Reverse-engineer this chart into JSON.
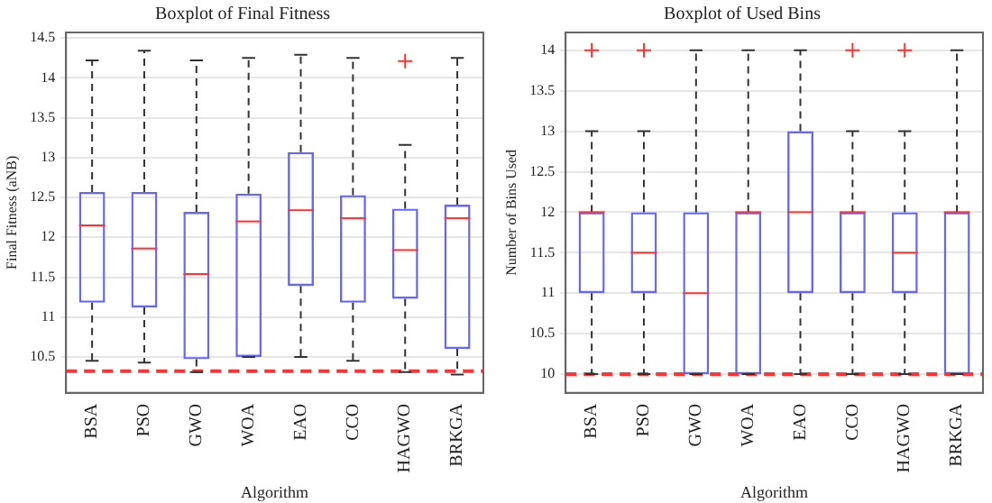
{
  "chart_data": [
    {
      "type": "box",
      "title": "Boxplot of Final Fitness",
      "xlabel": "Algorithm",
      "ylabel": "Final Fitness (aNB)",
      "categories": [
        "BSA",
        "PSO",
        "GWO",
        "WOA",
        "EAO",
        "CCO",
        "HAGWO",
        "BRKGA"
      ],
      "ylim": [
        10.05,
        14.57
      ],
      "yticks": [
        10.5,
        11,
        11.5,
        12,
        12.5,
        13,
        13.5,
        14,
        14.5
      ],
      "grid": "y",
      "series": [
        {
          "color": "#6666ff",
          "boxes": [
            {
              "low": 10.45,
              "q1": 11.18,
              "median": 12.15,
              "q3": 12.57,
              "high": 14.22
            },
            {
              "low": 10.43,
              "q1": 11.12,
              "median": 11.86,
              "q3": 12.57,
              "high": 14.34
            },
            {
              "low": 10.31,
              "q1": 10.47,
              "median": 11.54,
              "q3": 12.32,
              "high": 14.22
            },
            {
              "low": 10.5,
              "q1": 10.5,
              "median": 12.2,
              "q3": 12.55,
              "high": 14.25
            },
            {
              "low": 10.5,
              "q1": 11.39,
              "median": 12.34,
              "q3": 13.07,
              "high": 14.29
            },
            {
              "low": 10.45,
              "q1": 11.18,
              "median": 12.24,
              "q3": 12.53,
              "high": 14.25
            },
            {
              "low": 10.31,
              "q1": 11.23,
              "median": 11.84,
              "q3": 12.36,
              "high": 13.16,
              "outliers": [
                14.21
              ]
            },
            {
              "low": 10.28,
              "q1": 10.6,
              "median": 12.24,
              "q3": 12.41,
              "high": 14.25
            }
          ]
        }
      ],
      "ref_lines": [
        {
          "axis": "y",
          "value": 10.32,
          "color": "#ff3333",
          "line_style": "dashed"
        }
      ]
    },
    {
      "type": "box",
      "title": "Boxplot of Used Bins",
      "xlabel": "Algorithm",
      "ylabel": "Number of Bins Used",
      "categories": [
        "BSA",
        "PSO",
        "GWO",
        "WOA",
        "EAO",
        "CCO",
        "HAGWO",
        "BRKGA"
      ],
      "ylim": [
        9.77,
        14.22
      ],
      "yticks": [
        10,
        10.5,
        11,
        11.5,
        12,
        12.5,
        13,
        13.5,
        14
      ],
      "grid": "y",
      "series": [
        {
          "color": "#6666ff",
          "boxes": [
            {
              "low": 10,
              "q1": 11,
              "median": 12,
              "q3": 12,
              "high": 13,
              "outliers": [
                14
              ]
            },
            {
              "low": 10,
              "q1": 11,
              "median": 11.5,
              "q3": 12,
              "high": 13,
              "outliers": [
                14
              ]
            },
            {
              "low": 10,
              "q1": 10,
              "median": 11,
              "q3": 12,
              "high": 14
            },
            {
              "low": 10,
              "q1": 10,
              "median": 12,
              "q3": 12,
              "high": 14
            },
            {
              "low": 10,
              "q1": 11,
              "median": 12,
              "q3": 13,
              "high": 14
            },
            {
              "low": 10,
              "q1": 11,
              "median": 12,
              "q3": 12,
              "high": 13,
              "outliers": [
                14
              ]
            },
            {
              "low": 10,
              "q1": 11,
              "median": 11.5,
              "q3": 12,
              "high": 13,
              "outliers": [
                14
              ]
            },
            {
              "low": 10,
              "q1": 10,
              "median": 12,
              "q3": 12,
              "high": 14
            }
          ]
        }
      ],
      "ref_lines": [
        {
          "axis": "y",
          "value": 10,
          "color": "#ff3333",
          "line_style": "dashed"
        }
      ]
    }
  ]
}
